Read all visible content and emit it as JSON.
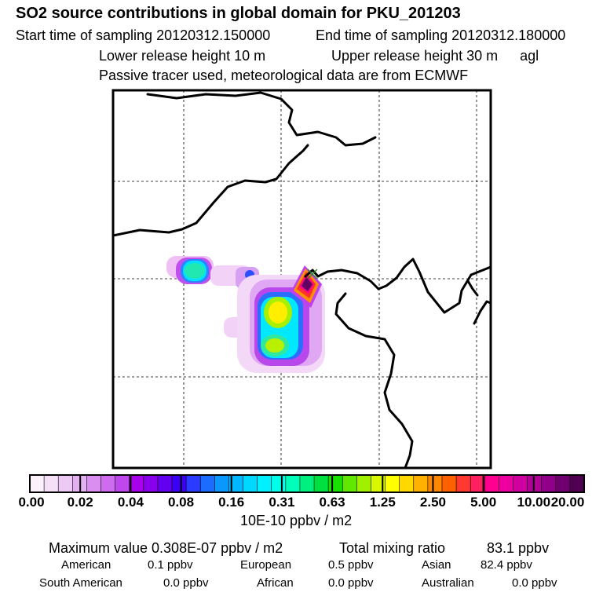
{
  "header": {
    "title": "SO2 source contributions in global domain for PKU_201203",
    "start_label": "Start time of sampling 20120312.150000",
    "end_label": "End time of sampling 20120312.180000",
    "lower_release": "Lower release height   10 m",
    "upper_release": "Upper release height   30 m",
    "release_unit": "agl",
    "tracer_note": "Passive tracer used, meteorological data are from ECMWF"
  },
  "map": {
    "frame_color": "#000000",
    "grid_style": "dashed",
    "coastline_color": "#000000",
    "release_marker": "x-marker-icon",
    "plume_colors": [
      "#ffffff",
      "#e080f0",
      "#b000f0",
      "#3030ff",
      "#00a8ff",
      "#00ffff",
      "#00e060",
      "#80e000",
      "#ffff00",
      "#ff9000",
      "#ff2020",
      "#ff0080",
      "#a00080"
    ]
  },
  "colorbar": {
    "tick_labels": [
      "0.00",
      "0.02",
      "0.04",
      "0.08",
      "0.16",
      "0.31",
      "0.63",
      "1.25",
      "2.50",
      "5.00",
      "10.00",
      "20.00"
    ],
    "colors": [
      "#fbf2fb",
      "#f5e0f8",
      "#eccaf5",
      "#e3b0f2",
      "#d98ef0",
      "#cd6cee",
      "#be48ec",
      "#a800ea",
      "#8a00ee",
      "#6400f2",
      "#3c00f6",
      "#2a3cff",
      "#1c6cff",
      "#0a98ff",
      "#00b8ff",
      "#00d8ff",
      "#00f0ff",
      "#00ffe8",
      "#00ffb8",
      "#00f080",
      "#00e040",
      "#18e000",
      "#60e800",
      "#a0f000",
      "#d8f800",
      "#ffff00",
      "#ffd800",
      "#ffb000",
      "#ff8800",
      "#ff6000",
      "#ff3830",
      "#ff2060",
      "#ff0090",
      "#ee00a0",
      "#d000a0",
      "#b00098",
      "#900088",
      "#700070",
      "#500050"
    ],
    "unit_label": "10E-10 ppbv / m2"
  },
  "summary": {
    "max_label": "Maximum value  0.308E-07 ppbv / m2",
    "total_label": "Total mixing ratio",
    "total_value": "83.1 ppbv",
    "regions": [
      {
        "name": "American",
        "value": "0.1 ppbv"
      },
      {
        "name": "European",
        "value": "0.5 ppbv"
      },
      {
        "name": "Asian",
        "value": "82.4 ppbv"
      },
      {
        "name": "South American",
        "value": "0.0 ppbv"
      },
      {
        "name": "African",
        "value": "0.0 ppbv"
      },
      {
        "name": "Australian",
        "value": "0.0 ppbv"
      }
    ]
  }
}
